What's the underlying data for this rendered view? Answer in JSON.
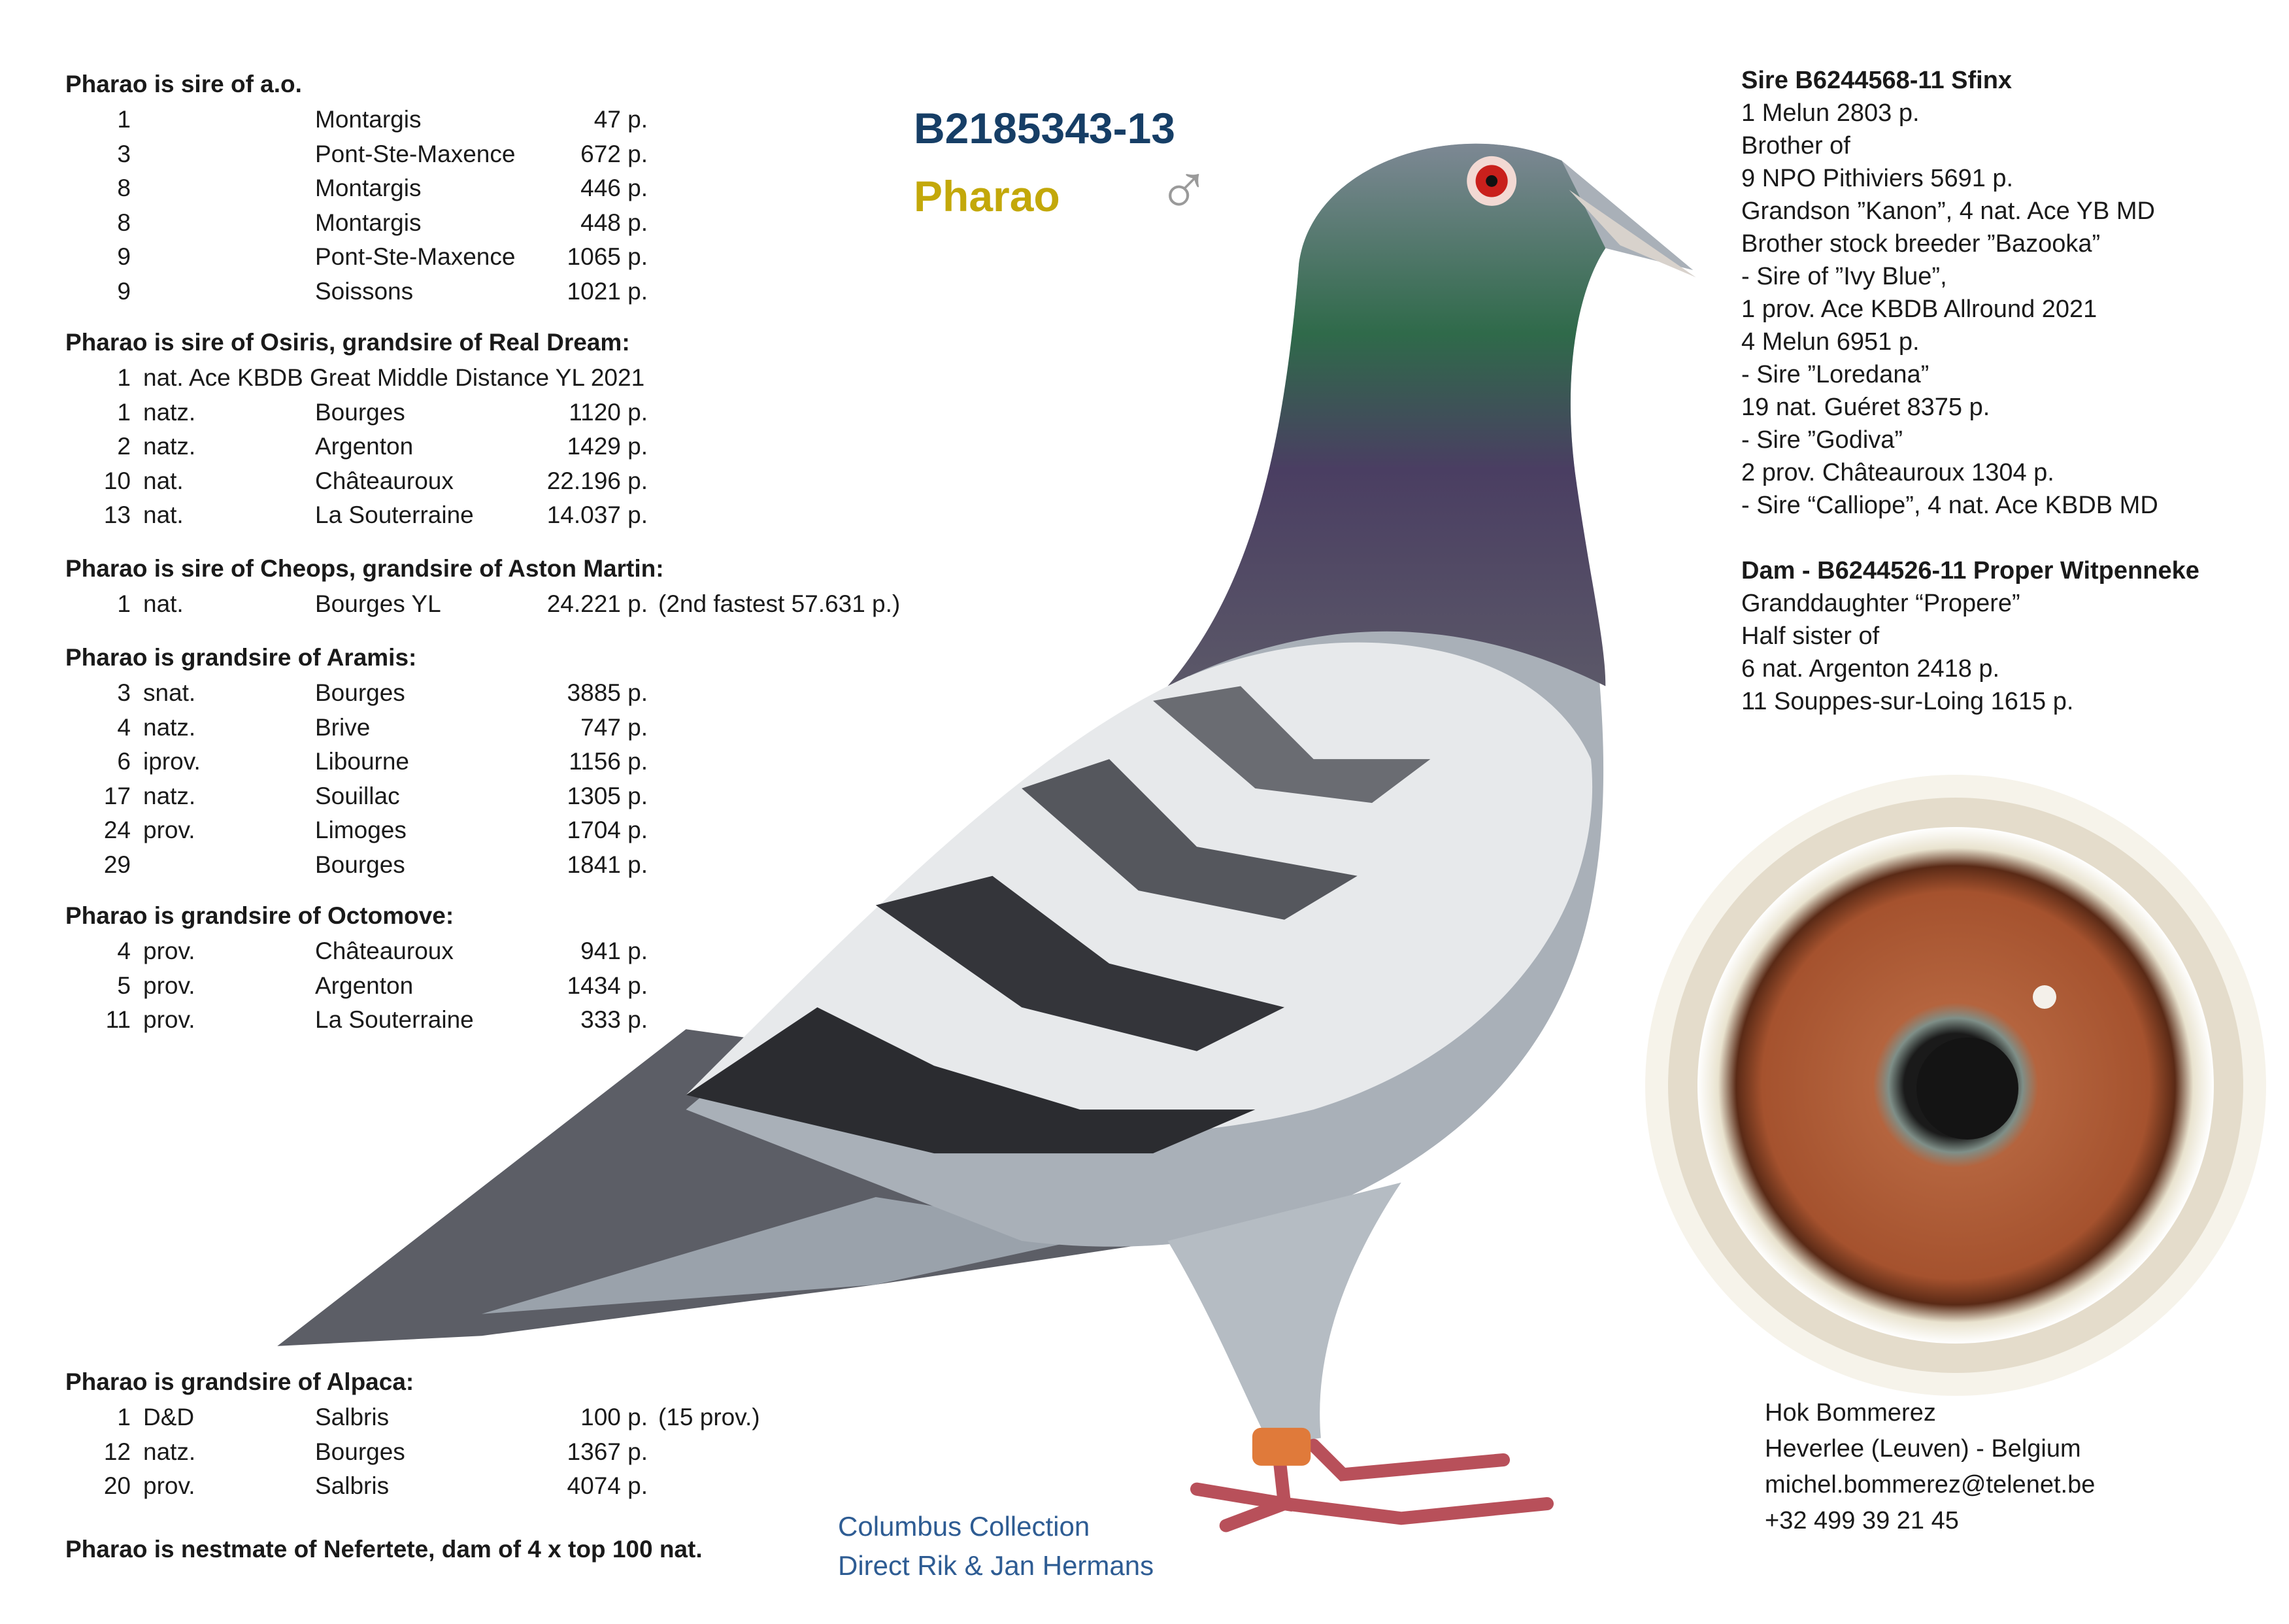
{
  "header": {
    "ring": "B2185343-13",
    "name": "Pharao",
    "sex_symbol": "♂"
  },
  "colors": {
    "ring": "#163e66",
    "name": "#c3a80a",
    "collection": "#2e5c93"
  },
  "left": {
    "sections": [
      {
        "title": "Pharao is sire of a.o.",
        "rows": [
          {
            "n": "1",
            "t": "",
            "place": "Montargis",
            "pts": "47 p."
          },
          {
            "n": "3",
            "t": "",
            "place": "Pont-Ste-Maxence",
            "pts": "672 p."
          },
          {
            "n": "8",
            "t": "",
            "place": "Montargis",
            "pts": "446 p."
          },
          {
            "n": "8",
            "t": "",
            "place": "Montargis",
            "pts": "448 p."
          },
          {
            "n": "9",
            "t": "",
            "place": "Pont-Ste-Maxence",
            "pts": "1065 p."
          },
          {
            "n": "9",
            "t": "",
            "place": "Soissons",
            "pts": "1021 p."
          }
        ]
      },
      {
        "title": "Pharao is sire of Osiris, grandsire of Real Dream:",
        "rows": [
          {
            "n": "1",
            "full": "nat. Ace KBDB Great Middle Distance YL 2021"
          },
          {
            "n": "1",
            "t": "natz.",
            "place": "Bourges",
            "pts": "1120 p."
          },
          {
            "n": "2",
            "t": "natz.",
            "place": "Argenton",
            "pts": "1429 p."
          },
          {
            "n": "10",
            "t": "nat.",
            "place": "Châteauroux",
            "pts": "22.196 p."
          },
          {
            "n": "13",
            "t": "nat.",
            "place": "La Souterraine",
            "pts": "14.037 p."
          }
        ]
      },
      {
        "title": "Pharao is sire of Cheops, grandsire of Aston Martin:",
        "rows": [
          {
            "n": "1",
            "t": "nat.",
            "place": "Bourges YL",
            "pts": "24.221 p.",
            "note": "(2nd fastest 57.631 p.)"
          }
        ]
      },
      {
        "title": "Pharao is grandsire of Aramis:",
        "rows": [
          {
            "n": "3",
            "t": "snat.",
            "place": "Bourges",
            "pts": "3885 p."
          },
          {
            "n": "4",
            "t": "natz.",
            "place": "Brive",
            "pts": "747 p."
          },
          {
            "n": "6",
            "t": "iprov.",
            "place": "Libourne",
            "pts": "1156 p."
          },
          {
            "n": "17",
            "t": "natz.",
            "place": "Souillac",
            "pts": "1305 p."
          },
          {
            "n": "24",
            "t": "prov.",
            "place": "Limoges",
            "pts": "1704 p."
          },
          {
            "n": "29",
            "t": "",
            "place": "Bourges",
            "pts": "1841 p."
          }
        ]
      },
      {
        "title": "Pharao is grandsire of Octomove:",
        "rows": [
          {
            "n": "4",
            "t": "prov.",
            "place": "Châteauroux",
            "pts": "941 p."
          },
          {
            "n": "5",
            "t": "prov.",
            "place": "Argenton",
            "pts": "1434 p."
          },
          {
            "n": "11",
            "t": "prov.",
            "place": "La Souterraine",
            "pts": "333 p."
          }
        ]
      },
      {
        "title": "Pharao is grandsire of Alpaca:",
        "rows": [
          {
            "n": "1",
            "t": "D&D",
            "place": "Salbris",
            "pts": "100 p.",
            "note": "(15 prov.)"
          },
          {
            "n": "12",
            "t": "natz.",
            "place": "Bourges",
            "pts": "1367 p."
          },
          {
            "n": "20",
            "t": "prov.",
            "place": "Salbris",
            "pts": "4074 p."
          }
        ]
      }
    ],
    "footer": "Pharao is nestmate of Nefertete, dam of 4 x top 100 nat."
  },
  "sire": {
    "title": "Sire B6244568-11 Sfinx",
    "lines": [
      "1 Melun 2803 p.",
      "Brother of",
      "9 NPO Pithiviers 5691 p.",
      "Grandson ”Kanon”, 4 nat. Ace YB MD",
      "Brother stock breeder ”Bazooka”",
      "- Sire of ”Ivy Blue”,",
      "1 prov. Ace KBDB Allround 2021",
      "4 Melun 6951 p.",
      "- Sire ”Loredana”",
      "19 nat. Guéret 8375 p.",
      "- Sire ”Godiva”",
      "2 prov. Châteauroux 1304 p.",
      "- Sire “Calliope”, 4 nat. Ace KBDB MD"
    ]
  },
  "dam": {
    "title": "Dam - B6244526-11 Proper Witpenneke",
    "lines": [
      "Granddaughter “Propere”",
      "Half sister of",
      "6 nat. Argenton 2418 p.",
      "11 Souppes-sur-Loing 1615 p."
    ]
  },
  "contact": {
    "lines": [
      "Hok Bommerez",
      "Heverlee (Leuven) - Belgium",
      "michel.bommerez@telenet.be",
      "+32 499 39 21 45"
    ]
  },
  "collection": {
    "lines": [
      "Columbus Collection",
      "Direct Rik & Jan Hermans"
    ]
  }
}
